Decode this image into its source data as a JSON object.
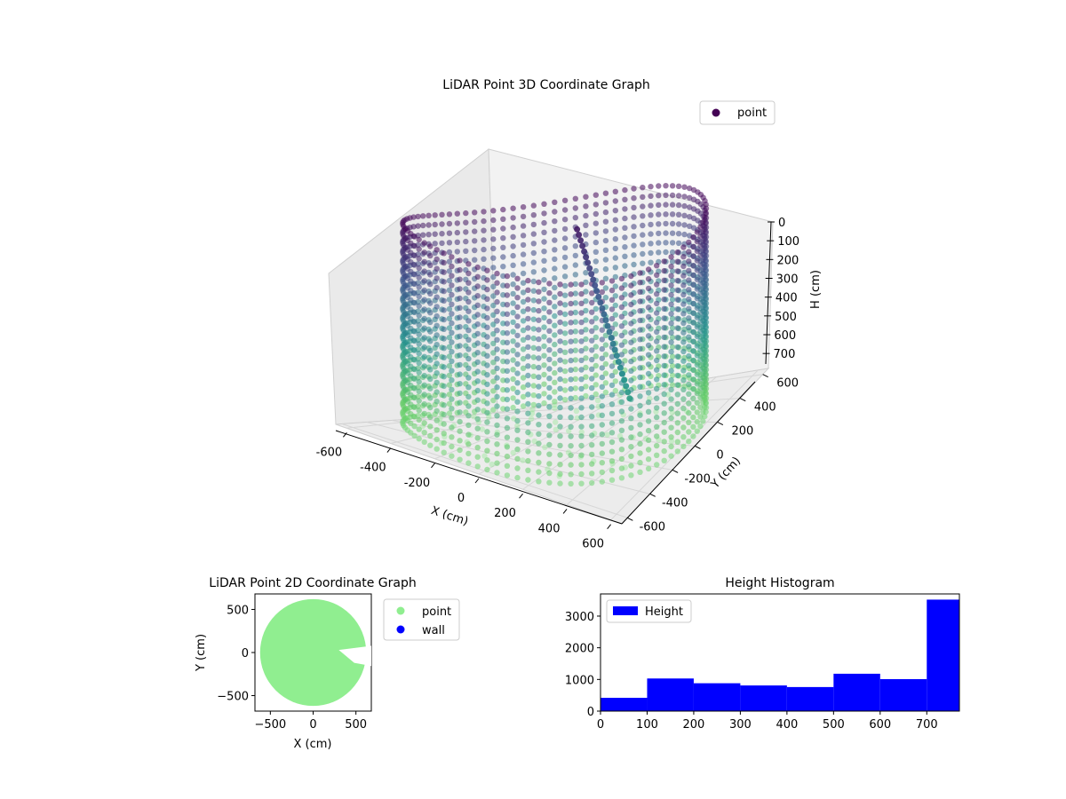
{
  "chart_data": [
    {
      "type": "scatter3d",
      "title": "LiDAR Point 3D Coordinate Graph",
      "xlabel": "X (cm)",
      "ylabel": "Y (cm)",
      "zlabel": "H (cm)",
      "xlim": [
        -650,
        650
      ],
      "ylim": [
        -650,
        650
      ],
      "zlim": [
        770,
        0
      ],
      "z_axis_inverted": true,
      "xticks": [
        -600,
        -400,
        -200,
        0,
        200,
        400,
        600
      ],
      "yticks": [
        -600,
        -400,
        -200,
        0,
        200,
        400,
        600
      ],
      "zticks": [
        0,
        100,
        200,
        300,
        400,
        500,
        600,
        700
      ],
      "colormap": "viridis",
      "legend": {
        "placement": "top-right",
        "entries": [
          {
            "label": "point",
            "color": "#440154"
          }
        ]
      },
      "grid": true,
      "description_points": {
        "wall_radius_cm": 620,
        "wall_height_range_cm": [
          0,
          770
        ],
        "floor_height_cm": 770
      }
    },
    {
      "type": "scatter",
      "title": "LiDAR Point 2D Coordinate Graph",
      "xlabel": "X (cm)",
      "ylabel": "Y (cm)",
      "xlim": [
        -680,
        680
      ],
      "ylim": [
        -680,
        680
      ],
      "xticks": [
        -500,
        0,
        500
      ],
      "yticks": [
        -500,
        0,
        500
      ],
      "series": [
        {
          "name": "point",
          "color": "#90ee90",
          "region": "disc",
          "radius": 620
        },
        {
          "name": "wall",
          "color": "#0000ff"
        }
      ],
      "legend": {
        "placement": "outside-right",
        "entries": [
          {
            "label": "point",
            "color": "#90ee90"
          },
          {
            "label": "wall",
            "color": "#0000ff"
          }
        ]
      }
    },
    {
      "type": "bar",
      "title": "Height Histogram",
      "xlim": [
        0,
        770
      ],
      "ylim": [
        0,
        3700
      ],
      "xticks": [
        0,
        100,
        200,
        300,
        400,
        500,
        600,
        700
      ],
      "yticks": [
        0,
        1000,
        2000,
        3000
      ],
      "bin_edges": [
        0,
        100,
        200,
        300,
        400,
        500,
        600,
        700,
        770
      ],
      "counts": [
        420,
        1030,
        880,
        810,
        760,
        1180,
        1010,
        3520
      ],
      "color": "#0000ff",
      "legend": {
        "placement": "top-left",
        "entries": [
          {
            "label": "Height",
            "color": "#0000ff"
          }
        ]
      }
    }
  ]
}
